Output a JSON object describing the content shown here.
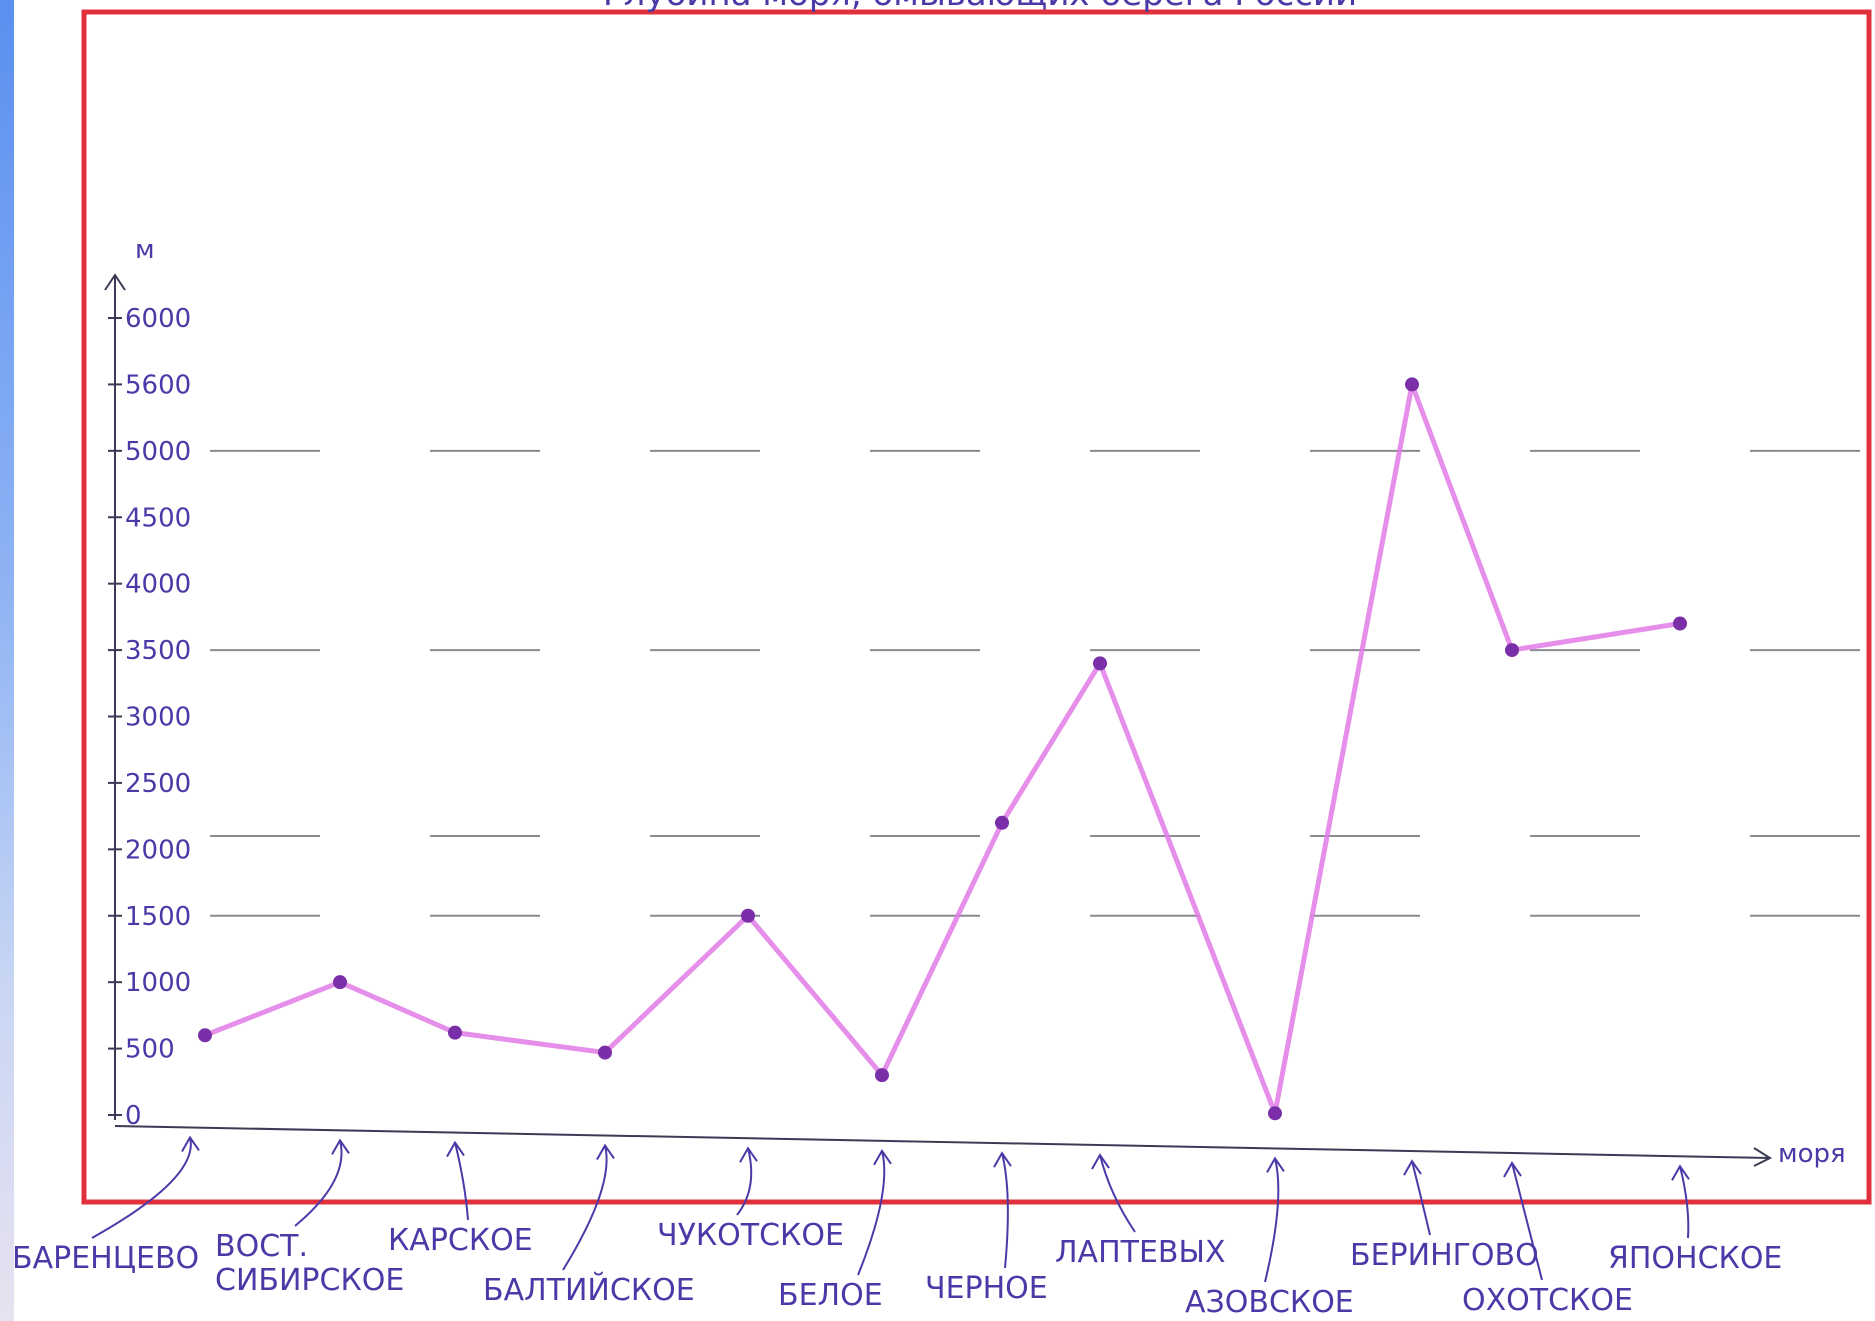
{
  "chart_data": {
    "type": "line",
    "title": "Глубина моря, омывающих берега России",
    "ylabel": "м",
    "xlabel": "моря",
    "ylim": [
      0,
      6000
    ],
    "yticks": [
      "0",
      "500",
      "1000",
      "1500",
      "2000",
      "2500",
      "3000",
      "3500",
      "4000",
      "4500",
      "5000",
      "5600",
      "6000"
    ],
    "categories": [
      {
        "line1": "БАРЕНЦЕВО",
        "line2": ""
      },
      {
        "line1": "ВОСТ.",
        "line2": "СИБИРСКОЕ"
      },
      {
        "line1": "КАРСКОЕ",
        "line2": ""
      },
      {
        "line1": "БАЛТИЙСКОЕ",
        "line2": ""
      },
      {
        "line1": "ЧУКОТСКОЕ",
        "line2": ""
      },
      {
        "line1": "БЕЛОЕ",
        "line2": ""
      },
      {
        "line1": "ЧЕРНОЕ",
        "line2": ""
      },
      {
        "line1": "ЛАПТЕВЫХ",
        "line2": ""
      },
      {
        "line1": "АЗОВСКОЕ",
        "line2": ""
      },
      {
        "line1": "БЕРИНГОВО",
        "line2": ""
      },
      {
        "line1": "ОХОТСКОЕ",
        "line2": ""
      },
      {
        "line1": "ЯПОНСКОЕ",
        "line2": ""
      }
    ],
    "values": [
      600,
      1000,
      620,
      470,
      1500,
      300,
      2200,
      3400,
      13,
      5500,
      3500,
      3700
    ],
    "series_color": "#e27be6",
    "point_color": "#7a2fa8",
    "grid": true,
    "frame_color": "#e0303c",
    "ink_color": "#4a3aa8"
  }
}
